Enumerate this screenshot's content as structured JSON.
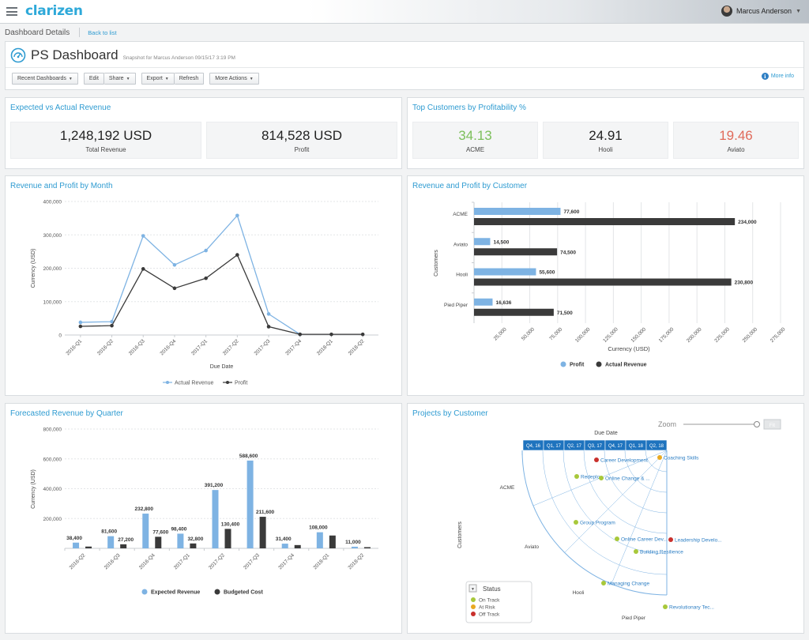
{
  "topbar": {
    "logo": "clarizen",
    "user_name": "Marcus Anderson"
  },
  "breadcrumb": {
    "title": "Dashboard Details",
    "back_link": "Back to list"
  },
  "header": {
    "title": "PS Dashboard",
    "snapshot": "Snapshot for Marcus Anderson 09/15/17 3:19 PM",
    "buttons": {
      "recent": "Recent Dashboards",
      "edit": "Edit",
      "share": "Share",
      "export": "Export",
      "refresh": "Refresh",
      "more_actions": "More Actions"
    },
    "more_info": "More info"
  },
  "panels": {
    "revenue": {
      "title": "Expected vs Actual Revenue",
      "kpis": [
        {
          "value": "1,248,192 USD",
          "label": "Total Revenue"
        },
        {
          "value": "814,528 USD",
          "label": "Profit"
        }
      ]
    },
    "customers": {
      "title": "Top Customers by Profitability %",
      "kpis": [
        {
          "value": "34.13",
          "label": "ACME",
          "color": "#7cbf5a"
        },
        {
          "value": "24.91",
          "label": "Hooli",
          "color": "#222222"
        },
        {
          "value": "19.46",
          "label": "Aviato",
          "color": "#e06a5a"
        }
      ]
    },
    "by_month": {
      "title": "Revenue and Profit by Month"
    },
    "by_customer": {
      "title": "Revenue and Profit by Customer"
    },
    "forecast": {
      "title": "Forecasted Revenue by Quarter"
    },
    "projects": {
      "title": "Projects by Customer"
    }
  },
  "chart_data": [
    {
      "id": "by_month",
      "type": "line",
      "xlabel": "Due Date",
      "ylabel": "Currency (USD)",
      "ylim": [
        0,
        400000
      ],
      "yticks": [
        "0",
        "100,000",
        "200,000",
        "300,000",
        "400,000"
      ],
      "categories": [
        "2016-Q1",
        "2016-Q2",
        "2016-Q3",
        "2016-Q4",
        "2017-Q1",
        "2017-Q2",
        "2017-Q3",
        "2017-Q4",
        "2018-Q1",
        "2018-Q2"
      ],
      "series": [
        {
          "name": "Actual Revenue",
          "color": "#7eb3e3",
          "values": [
            38000,
            40000,
            297000,
            210000,
            253000,
            358000,
            63000,
            2000,
            null,
            null
          ]
        },
        {
          "name": "Profit",
          "color": "#3a3a3a",
          "values": [
            26000,
            28000,
            198000,
            140000,
            170000,
            240000,
            25000,
            2000,
            2000,
            2000
          ]
        }
      ],
      "legend": "bottom",
      "grid": true
    },
    {
      "id": "by_customer",
      "type": "bar",
      "orientation": "horizontal",
      "xlabel": "Currency (USD)",
      "ylabel": "Customers",
      "xlim": [
        0,
        275000
      ],
      "xticks": [
        "25,000",
        "50,000",
        "75,000",
        "100,000",
        "125,000",
        "150,000",
        "175,000",
        "200,000",
        "225,000",
        "250,000",
        "275,000"
      ],
      "categories": [
        "ACME",
        "Aviato",
        "Hooli",
        "Pied Piper"
      ],
      "series": [
        {
          "name": "Profit",
          "color": "#7eb3e3",
          "values": [
            77600,
            14500,
            55600,
            16636
          ],
          "labels": [
            "77,600",
            "14,500",
            "55,600",
            "16,636"
          ]
        },
        {
          "name": "Actual Revenue",
          "color": "#3a3a3a",
          "values": [
            234000,
            74500,
            230800,
            71500
          ],
          "labels": [
            "234,000",
            "74,500",
            "230,800",
            "71,500"
          ]
        }
      ],
      "legend": "bottom",
      "grid": true
    },
    {
      "id": "forecast",
      "type": "bar",
      "ylabel": "Currency (USD)",
      "ylim": [
        0,
        800000
      ],
      "yticks": [
        "200,000",
        "400,000",
        "600,000",
        "800,000"
      ],
      "categories": [
        "2016-Q2",
        "2016-Q3",
        "2016-Q4",
        "2017-Q1",
        "2017-Q2",
        "2017-Q3",
        "2017-Q4",
        "2018-Q1",
        "2018-Q2"
      ],
      "series": [
        {
          "name": "Expected Revenue",
          "color": "#7eb3e3",
          "values": [
            38400,
            81600,
            232800,
            98400,
            391200,
            588600,
            31400,
            108000,
            11000
          ],
          "labels": [
            "38,400",
            "81,600",
            "232,800",
            "98,400",
            "391,200",
            "588,600",
            "31,400",
            "108,000",
            "11,000"
          ]
        },
        {
          "name": "Budgeted Cost",
          "color": "#3a3a3a",
          "values": [
            12000,
            27200,
            77600,
            32800,
            130400,
            211600,
            22000,
            86000,
            8000
          ],
          "labels": [
            "",
            "27,200",
            "77,600",
            "32,800",
            "130,400",
            "211,600",
            "",
            "",
            ""
          ]
        }
      ],
      "legend": "bottom",
      "grid": true
    },
    {
      "id": "projects",
      "type": "scatter",
      "xlabel": "Due Date",
      "ylabel": "Customers",
      "zoom_label": "Zoom",
      "fit_label": "Fit",
      "quarters": [
        "Q4, 16",
        "Q1, 17",
        "Q2, 17",
        "Q3, 17",
        "Q4, 17",
        "Q1, 18",
        "Q2, 18"
      ],
      "customers": [
        "ACME",
        "Aviato",
        "Hooli",
        "Pied Piper"
      ],
      "legend_title": "Status",
      "legend": [
        {
          "name": "On Track",
          "color": "#a8c83a"
        },
        {
          "name": "At Risk",
          "color": "#e8a922"
        },
        {
          "name": "Off Track",
          "color": "#c9302c"
        }
      ],
      "projects": [
        {
          "name": "Career Development",
          "status": "Off Track",
          "color": "#c9302c"
        },
        {
          "name": "Coaching Skills",
          "status": "At Risk",
          "color": "#e8a922"
        },
        {
          "name": "Redeplo...",
          "status": "On Track",
          "color": "#a8c83a"
        },
        {
          "name": "Online Change & ...",
          "status": "On Track",
          "color": "#a8c83a"
        },
        {
          "name": "Group Program",
          "status": "On Track",
          "color": "#a8c83a"
        },
        {
          "name": "Online Career Dev...",
          "status": "On Track",
          "color": "#a8c83a"
        },
        {
          "name": "Leadership Develo...",
          "status": "Off Track",
          "color": "#c9302c"
        },
        {
          "name": "Building Resilience",
          "status": "On Track",
          "color": "#a8c83a"
        },
        {
          "name": "Managing Change",
          "status": "On Track",
          "color": "#a8c83a"
        },
        {
          "name": "Revolutionary Tec...",
          "status": "On Track",
          "color": "#a8c83a"
        }
      ]
    }
  ]
}
